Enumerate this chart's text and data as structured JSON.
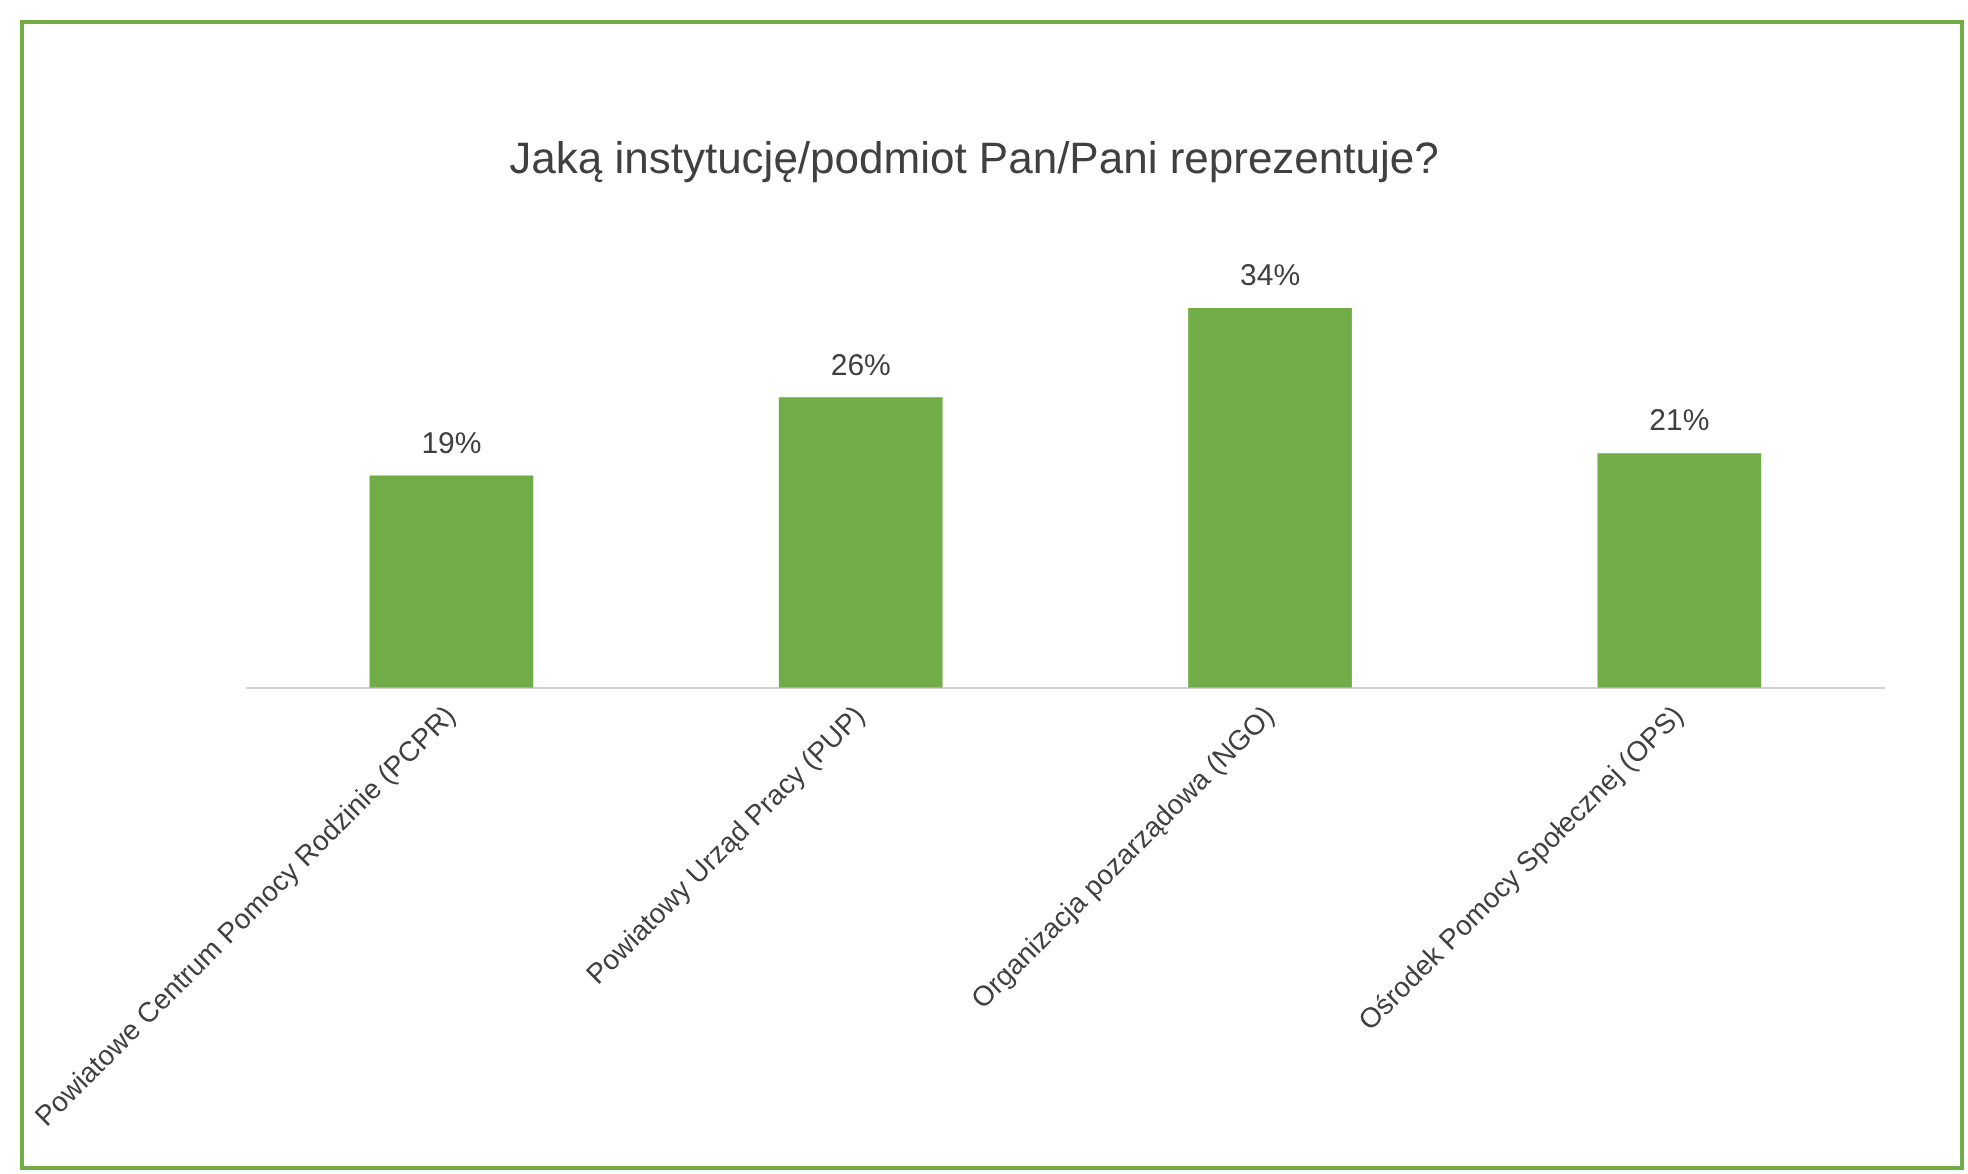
{
  "chart_data": {
    "type": "bar",
    "title": "Jaką instytucję/podmiot Pan/Pani reprezentuje?",
    "categories": [
      "Powiatowe Centrum Pomocy Rodzinie (PCPR)",
      "Powiatowy Urząd Pracy (PUP)",
      "Organizacja pozarządowa (NGO)",
      "Ośrodek Pomocy Społecznej (OPS)"
    ],
    "values": [
      19,
      26,
      34,
      21
    ],
    "value_labels": [
      "19%",
      "26%",
      "34%",
      "21%"
    ],
    "color": "#70ad47",
    "grid": false,
    "legend": false,
    "tick_labels": "x"
  }
}
